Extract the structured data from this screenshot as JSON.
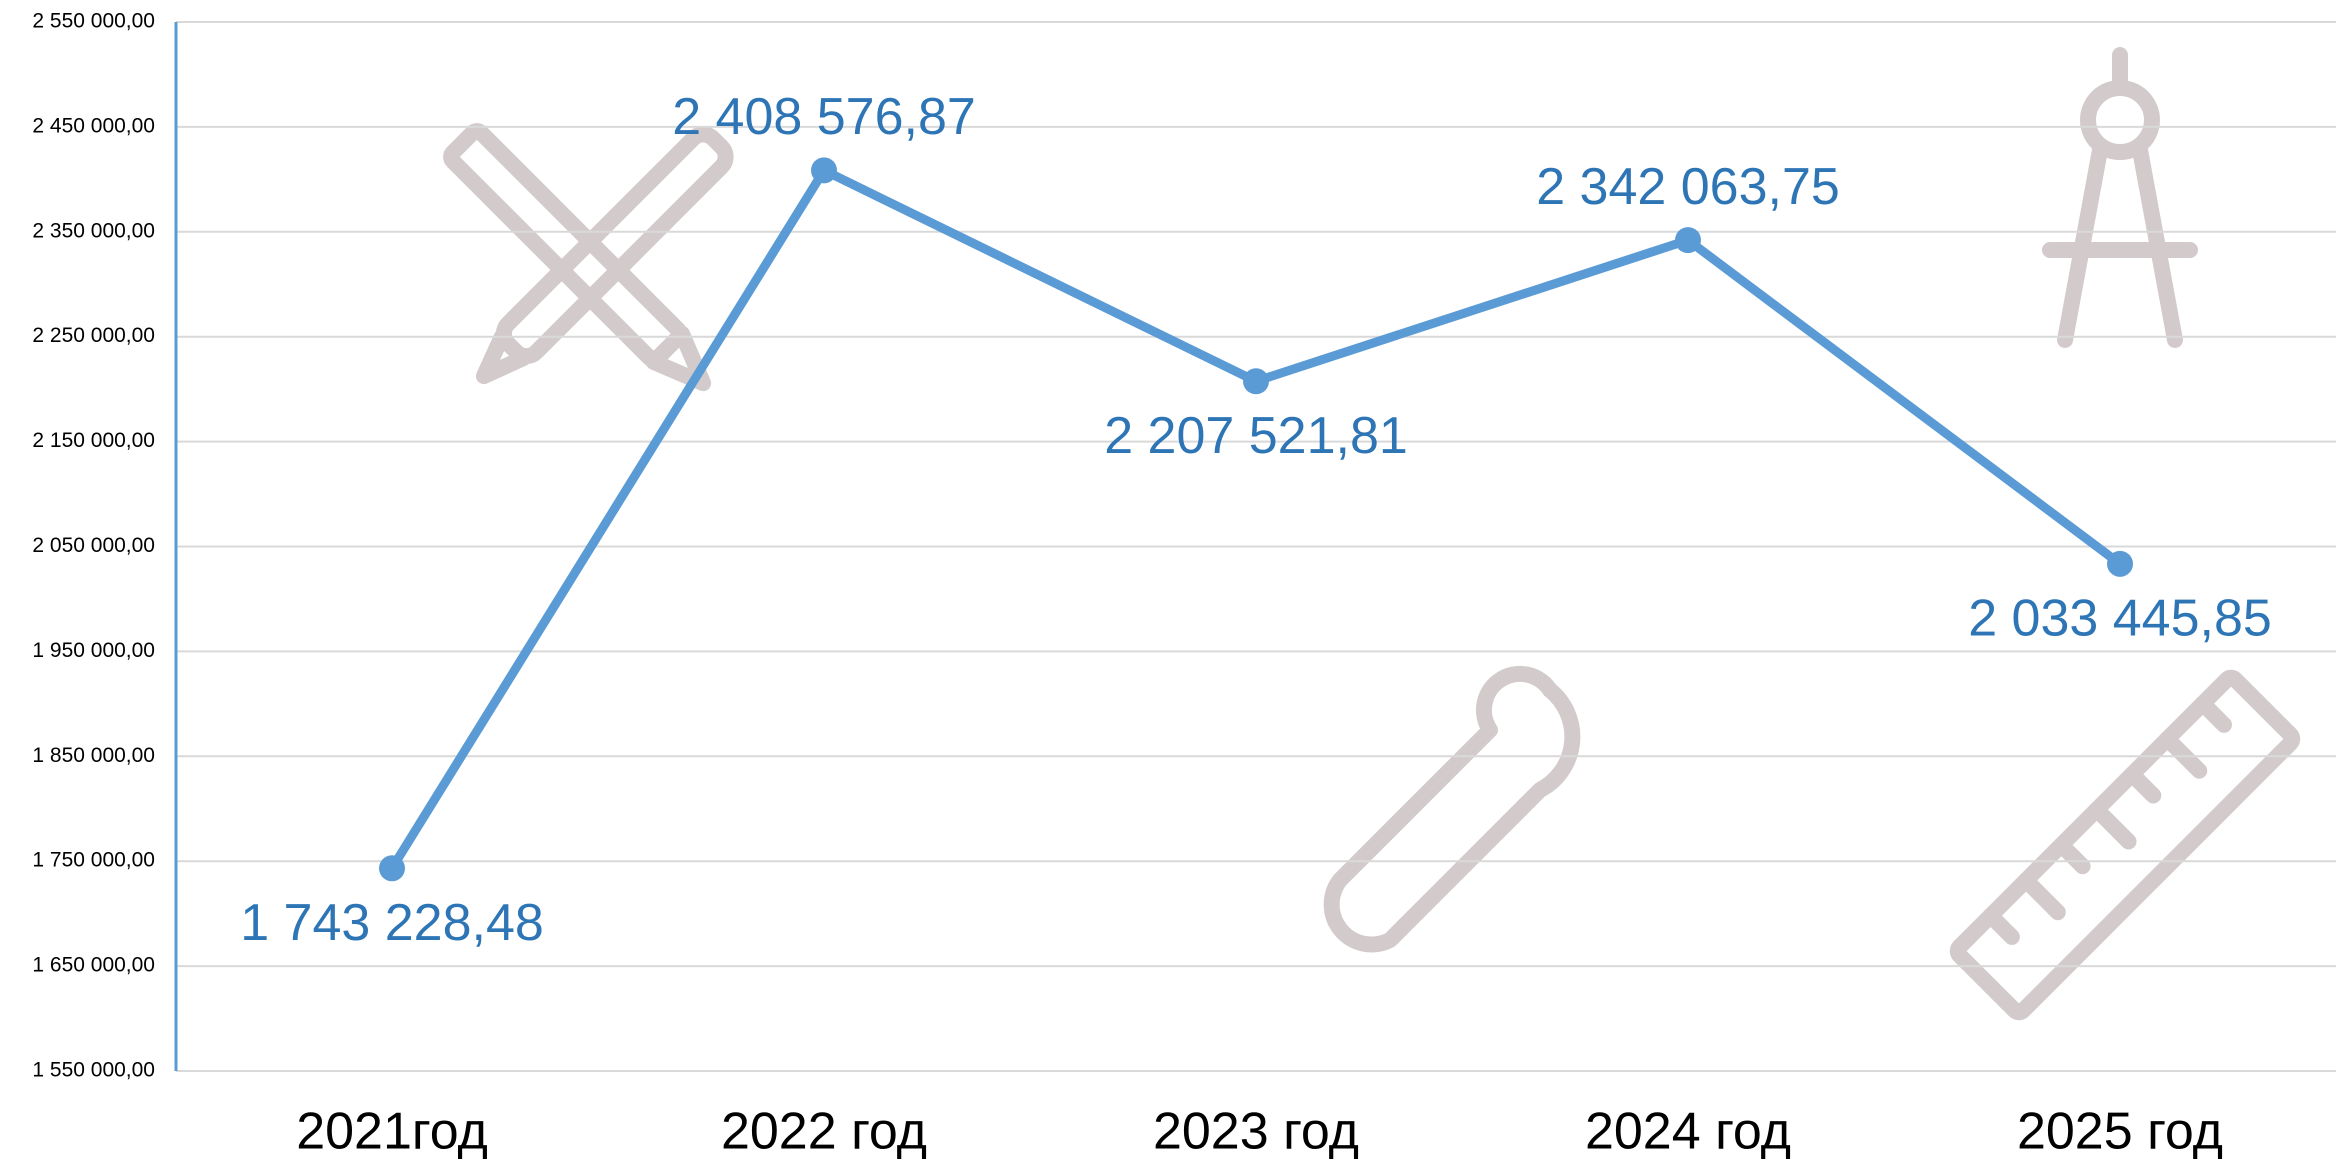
{
  "chart_data": {
    "type": "line",
    "categories": [
      "2021год",
      "2022 год",
      "2023 год",
      "2024 год",
      "2025 год"
    ],
    "series": [
      {
        "color": "#5b9bd5",
        "values": [
          1743228.48,
          2408576.87,
          2207521.81,
          2342063.75,
          2033445.85
        ],
        "value_labels": [
          "1 743 228,48",
          "2 408 576,87",
          "2 207 521,81",
          "2 342 063,75",
          "2 033 445,85"
        ]
      }
    ],
    "ylim": [
      1550000,
      2550000
    ],
    "yticks": [
      {
        "value": 1550000,
        "label": "1 550 000,00"
      },
      {
        "value": 1650000,
        "label": "1 650 000,00"
      },
      {
        "value": 1750000,
        "label": "1 750 000,00"
      },
      {
        "value": 1850000,
        "label": "1 850 000,00"
      },
      {
        "value": 1950000,
        "label": "1 950 000,00"
      },
      {
        "value": 2050000,
        "label": "2 050 000,00"
      },
      {
        "value": 2150000,
        "label": "2 150 000,00"
      },
      {
        "value": 2250000,
        "label": "2 250 000,00"
      },
      {
        "value": 2350000,
        "label": "2 350 000,00"
      },
      {
        "value": 2450000,
        "label": "2 450 000,00"
      },
      {
        "value": 2550000,
        "label": "2 550 000,00"
      }
    ],
    "grid": true
  }
}
